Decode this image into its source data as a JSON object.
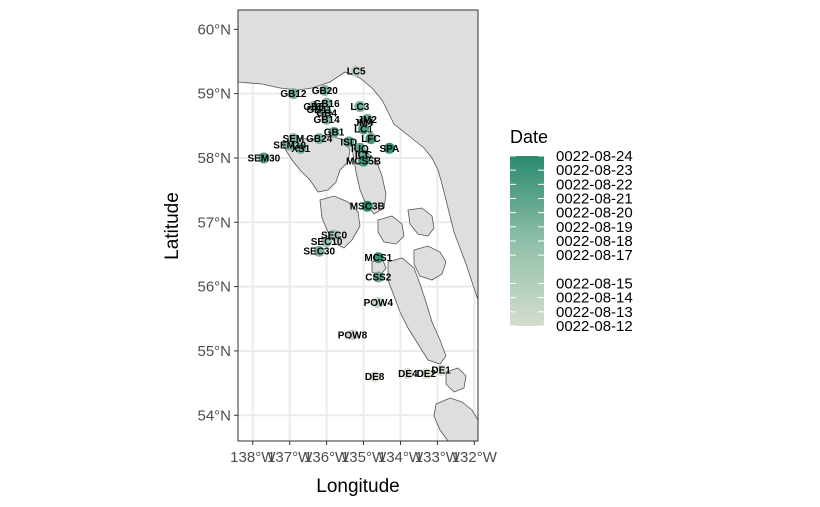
{
  "chart_data": {
    "type": "scatter",
    "subtype": "map",
    "title": "",
    "xlabel": "Longitude",
    "ylabel": "Latitude",
    "xlim": [
      -138.4,
      -131.9
    ],
    "ylim": [
      53.6,
      60.3
    ],
    "grid": true,
    "x_ticks": [
      {
        "value": -138,
        "label": "138°W"
      },
      {
        "value": -137,
        "label": "137°W"
      },
      {
        "value": -136,
        "label": "136°W"
      },
      {
        "value": -135,
        "label": "135°W"
      },
      {
        "value": -134,
        "label": "134°W"
      },
      {
        "value": -133,
        "label": "133°W"
      },
      {
        "value": -132,
        "label": "132°W"
      }
    ],
    "y_ticks": [
      {
        "value": 54,
        "label": "54°N"
      },
      {
        "value": 55,
        "label": "55°N"
      },
      {
        "value": 56,
        "label": "56°N"
      },
      {
        "value": 57,
        "label": "57°N"
      },
      {
        "value": 58,
        "label": "58°N"
      },
      {
        "value": 59,
        "label": "59°N"
      },
      {
        "value": 60,
        "label": "60°N"
      }
    ],
    "colors": {
      "land": "#dedede",
      "water": "#ffffff",
      "coast": "#555555",
      "gradient_low": "#d4ddcf",
      "gradient_high": "#2a8a6e"
    },
    "legend": {
      "title": "Date",
      "position": "right",
      "labels": [
        {
          "label": "0022-08-24",
          "t": 1.0
        },
        {
          "label": "0022-08-23",
          "t": 0.9167
        },
        {
          "label": "0022-08-22",
          "t": 0.8333
        },
        {
          "label": "0022-08-21",
          "t": 0.75
        },
        {
          "label": "0022-08-20",
          "t": 0.6667
        },
        {
          "label": "0022-08-19",
          "t": 0.5833
        },
        {
          "label": "0022-08-18",
          "t": 0.5
        },
        {
          "label": "0022-08-17",
          "t": 0.4167
        },
        {
          "label": "0022-08-15",
          "t": 0.25
        },
        {
          "label": "0022-08-14",
          "t": 0.1667
        },
        {
          "label": "0022-08-13",
          "t": 0.0833
        },
        {
          "label": "0022-08-12",
          "t": 0.0
        }
      ]
    },
    "points": [
      {
        "name": "LC5",
        "x": -135.2,
        "y": 59.35,
        "t": 0.15
      },
      {
        "name": "GB12",
        "x": -136.9,
        "y": 59.0,
        "t": 0.55
      },
      {
        "name": "GB20",
        "x": -136.05,
        "y": 59.05,
        "t": 0.5
      },
      {
        "name": "GB16",
        "x": -136.0,
        "y": 58.85,
        "t": 0.45
      },
      {
        "name": "GB6",
        "x": -136.35,
        "y": 58.8,
        "t": 0.4
      },
      {
        "name": "GB11",
        "x": -136.2,
        "y": 58.75,
        "t": 0.35
      },
      {
        "name": "GB4",
        "x": -136.0,
        "y": 58.7,
        "t": 0.45
      },
      {
        "name": "GB14",
        "x": -136.0,
        "y": 58.6,
        "t": 0.4
      },
      {
        "name": "LC3",
        "x": -135.1,
        "y": 58.8,
        "t": 0.55
      },
      {
        "name": "JM2",
        "x": -134.9,
        "y": 58.6,
        "t": 0.6
      },
      {
        "name": "JM4",
        "x": -135.0,
        "y": 58.55,
        "t": 0.6
      },
      {
        "name": "LC1",
        "x": -135.0,
        "y": 58.45,
        "t": 0.75
      },
      {
        "name": "GB1",
        "x": -135.8,
        "y": 58.4,
        "t": 0.55
      },
      {
        "name": "GB24",
        "x": -136.2,
        "y": 58.3,
        "t": 0.5
      },
      {
        "name": "LFC",
        "x": -134.8,
        "y": 58.3,
        "t": 0.85
      },
      {
        "name": "SPA",
        "x": -134.3,
        "y": 58.15,
        "t": 0.95
      },
      {
        "name": "ISD",
        "x": -135.4,
        "y": 58.25,
        "t": 0.65
      },
      {
        "name": "IUQ",
        "x": -135.1,
        "y": 58.15,
        "t": 0.7
      },
      {
        "name": "ICC",
        "x": -135.0,
        "y": 58.05,
        "t": 0.6
      },
      {
        "name": "MCS5B",
        "x": -135.0,
        "y": 57.95,
        "t": 0.85
      },
      {
        "name": "SEM",
        "x": -136.9,
        "y": 58.3,
        "t": 0.45
      },
      {
        "name": "SEM10",
        "x": -137.0,
        "y": 58.2,
        "t": 0.5
      },
      {
        "name": "XS1",
        "x": -136.7,
        "y": 58.15,
        "t": 0.55
      },
      {
        "name": "SEM30",
        "x": -137.7,
        "y": 58.0,
        "t": 0.75
      },
      {
        "name": "MSC3B",
        "x": -134.9,
        "y": 57.25,
        "t": 1.0
      },
      {
        "name": "SEC0",
        "x": -135.8,
        "y": 56.8,
        "t": 0.3
      },
      {
        "name": "SEC10",
        "x": -136.0,
        "y": 56.7,
        "t": 0.35
      },
      {
        "name": "SEC30",
        "x": -136.2,
        "y": 56.55,
        "t": 0.5
      },
      {
        "name": "MCS1",
        "x": -134.6,
        "y": 56.45,
        "t": 0.9
      },
      {
        "name": "CSS2",
        "x": -134.6,
        "y": 56.15,
        "t": 0.6
      },
      {
        "name": "POW4",
        "x": -134.6,
        "y": 55.75,
        "t": 0.1
      },
      {
        "name": "POW8",
        "x": -135.3,
        "y": 55.25,
        "t": 0.05
      },
      {
        "name": "DE8",
        "x": -134.7,
        "y": 54.6,
        "t": 0.0
      },
      {
        "name": "DE4",
        "x": -133.8,
        "y": 54.65,
        "t": 0.0
      },
      {
        "name": "DE2",
        "x": -133.3,
        "y": 54.65,
        "t": 0.0
      },
      {
        "name": "DE1",
        "x": -132.9,
        "y": 54.7,
        "t": 0.0
      }
    ]
  }
}
